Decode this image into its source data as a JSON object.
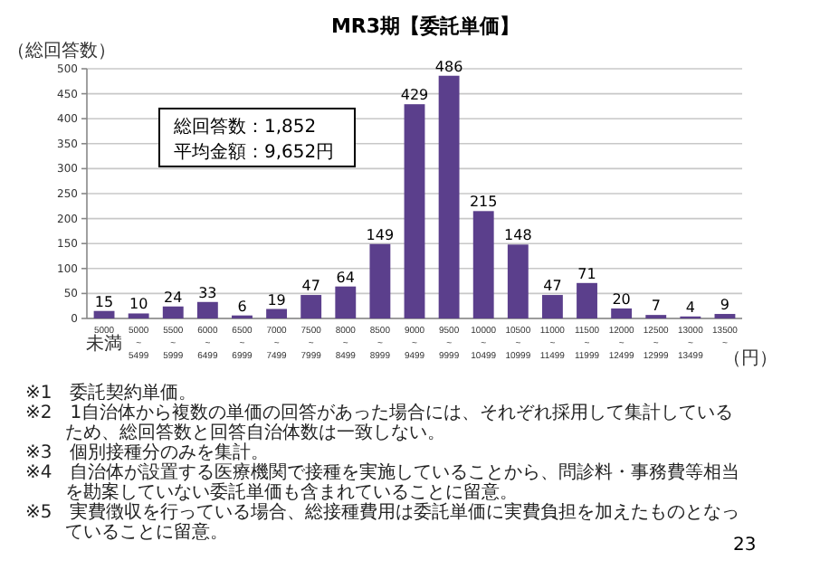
{
  "chart_data": {
    "type": "bar",
    "title": "MR3期【委託単価】",
    "ylabel": "（総回答数）",
    "categories": [
      "5000 未満",
      "5000 ~ 5499",
      "5500 ~ 5999",
      "6000 ~ 6499",
      "6500 ~ 6999",
      "7000 ~ 7499",
      "7500 ~ 7999",
      "8000 ~ 8499",
      "8500 ~ 8999",
      "9000 ~ 9499",
      "9500 ~ 9999",
      "10000 ~ 10499",
      "10500 ~ 10999",
      "11000 ~ 11499",
      "11500 ~ 11999",
      "12000 ~ 12499",
      "12500 ~ 12999",
      "13000 ~ 13499",
      "13500 ~"
    ],
    "values": [
      15,
      10,
      24,
      33,
      6,
      19,
      47,
      64,
      149,
      429,
      486,
      215,
      148,
      47,
      71,
      20,
      7,
      4,
      9
    ],
    "color": "#5b3f8c",
    "ylim": [
      0,
      500
    ],
    "yticks": [
      0,
      50,
      100,
      150,
      200,
      250,
      300,
      350,
      400,
      450,
      500
    ],
    "grid": "y",
    "data_labels": true,
    "annotations": [
      "総回答数：1,852",
      "平均金額：9,652円",
      "※1　委託契約単価。",
      "※2　1自治体から複数の単価の回答があった場合には、それぞれ採用して集計しているため、総回答数と回答自治体数は一致しない。",
      "※3　個別接種分のみを集計。",
      "※4　自治体が設置する医療機関で接種を実施していることから、問診料・事務費等相当を勘案していない委託単価も含まれていることに留意。",
      "※5　実費徴収を行っている場合、総接種費用は委託単価に実費負担を加えたものとなっていることに留意。",
      "（円）",
      "23"
    ]
  }
}
